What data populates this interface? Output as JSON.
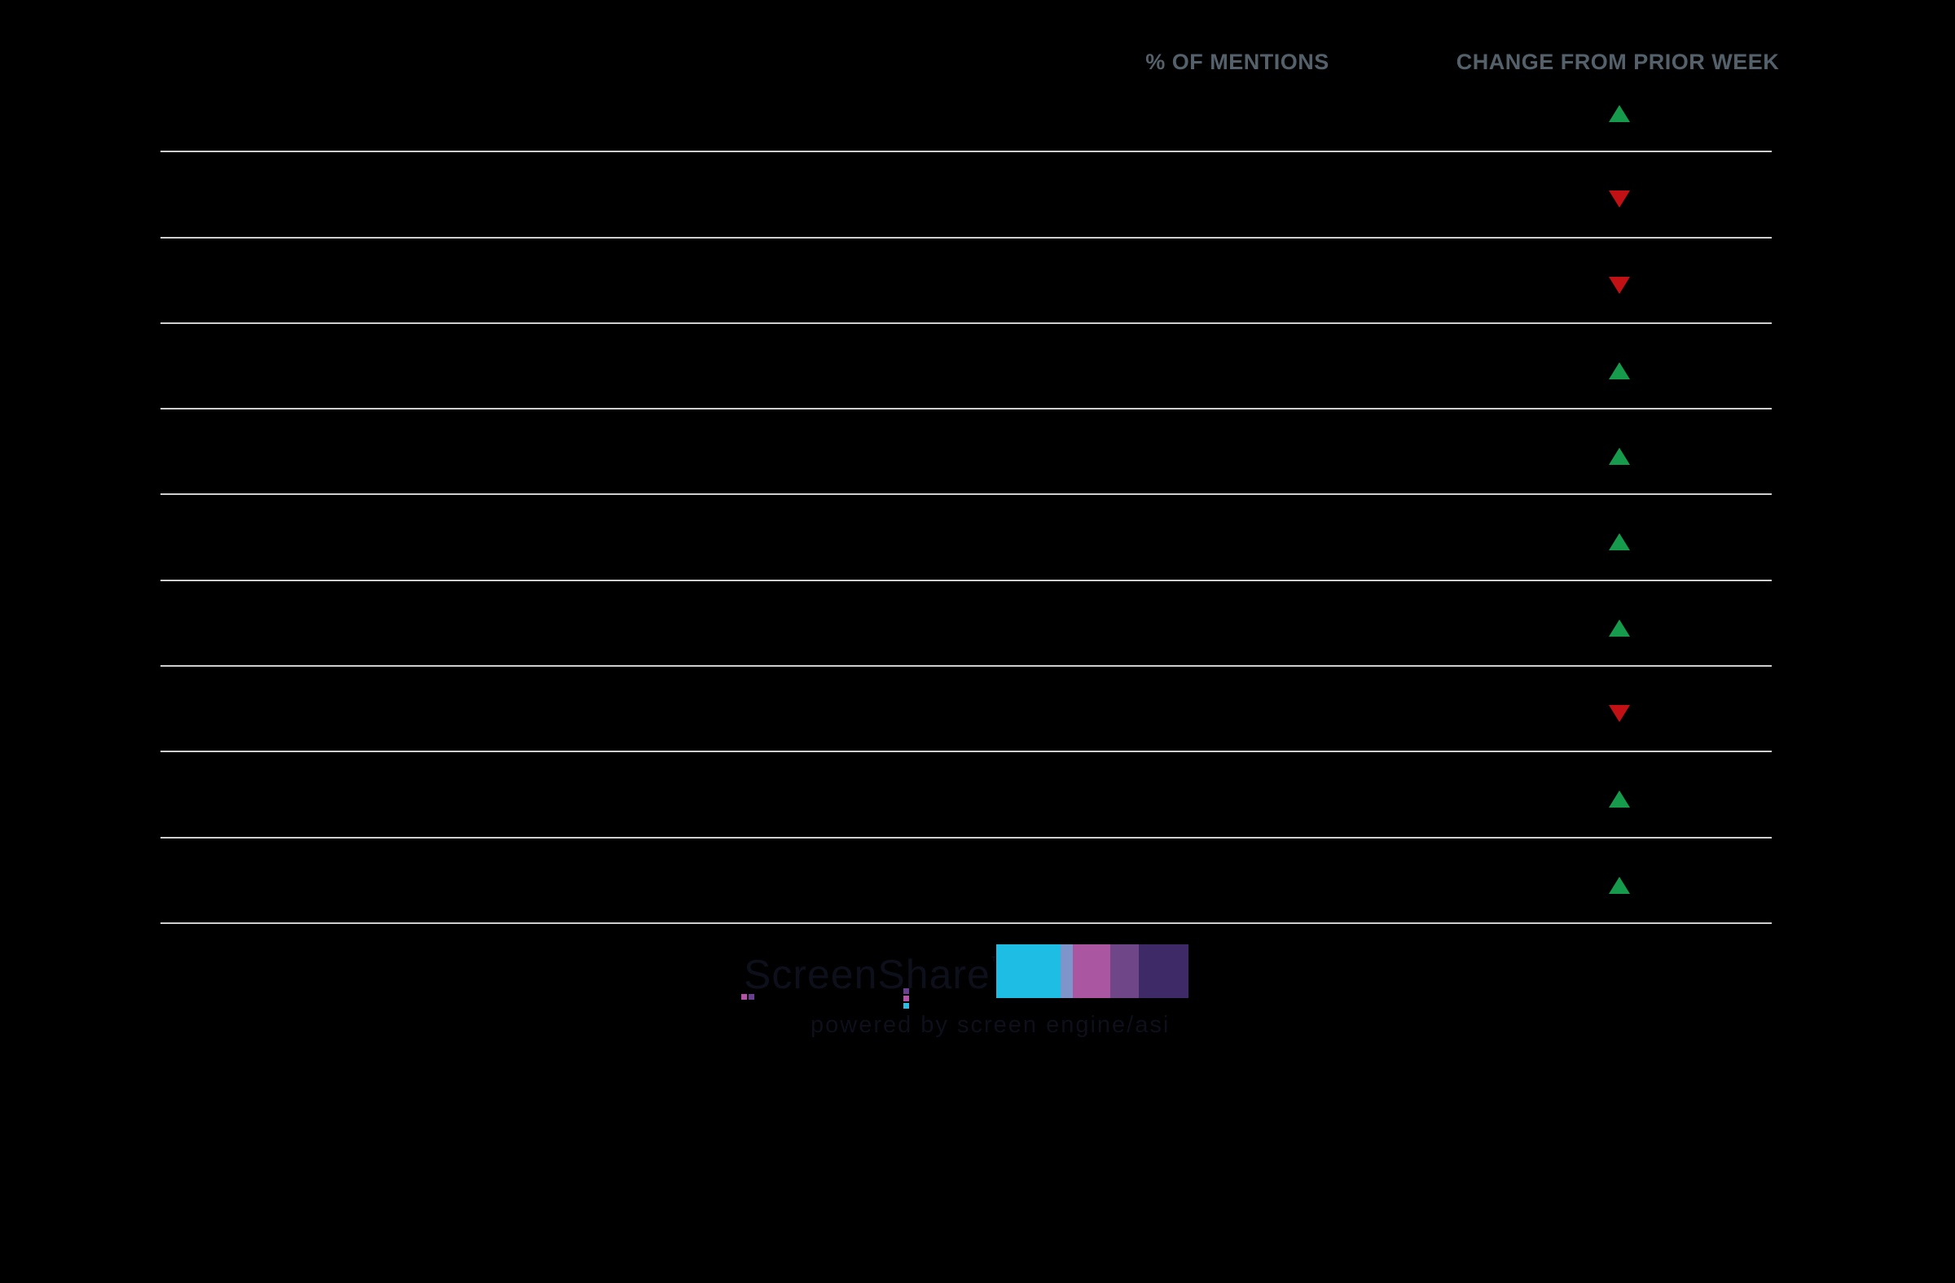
{
  "header": {
    "col_mentions": "% OF MENTIONS",
    "col_change": "CHANGE FROM PRIOR WEEK"
  },
  "chart_data": {
    "type": "table",
    "columns": [
      "% OF MENTIONS",
      "CHANGE FROM PRIOR WEEK"
    ],
    "rows": [
      {
        "change_from_prior_week": "up"
      },
      {
        "change_from_prior_week": "down"
      },
      {
        "change_from_prior_week": "down"
      },
      {
        "change_from_prior_week": "up"
      },
      {
        "change_from_prior_week": "up"
      },
      {
        "change_from_prior_week": "up"
      },
      {
        "change_from_prior_week": "up"
      },
      {
        "change_from_prior_week": "down"
      },
      {
        "change_from_prior_week": "up"
      },
      {
        "change_from_prior_week": "up"
      }
    ]
  },
  "colors": {
    "background": "#000000",
    "header_text": "#54616b",
    "divider": "#cfcfcf",
    "up": "#169b4d",
    "down": "#c11115",
    "logo_text": "#0d0f1a",
    "logo_magenta": "#b653a8",
    "logo_purple": "#6a3f90",
    "logo_cyan": "#2bbde4"
  },
  "logo": {
    "name": "ScreenShare",
    "trademark": "™",
    "tagline": "powered by screen engine/asi",
    "bars": [
      {
        "name": "bar-cyan",
        "color": "#1ebee4"
      },
      {
        "name": "bar-periwinkle",
        "color": "#7e95cc"
      },
      {
        "name": "bar-orchid",
        "color": "#aa56a0"
      },
      {
        "name": "bar-medium-purple",
        "color": "#6f4788"
      },
      {
        "name": "bar-dark-purple",
        "color": "#3e2a66"
      }
    ]
  }
}
